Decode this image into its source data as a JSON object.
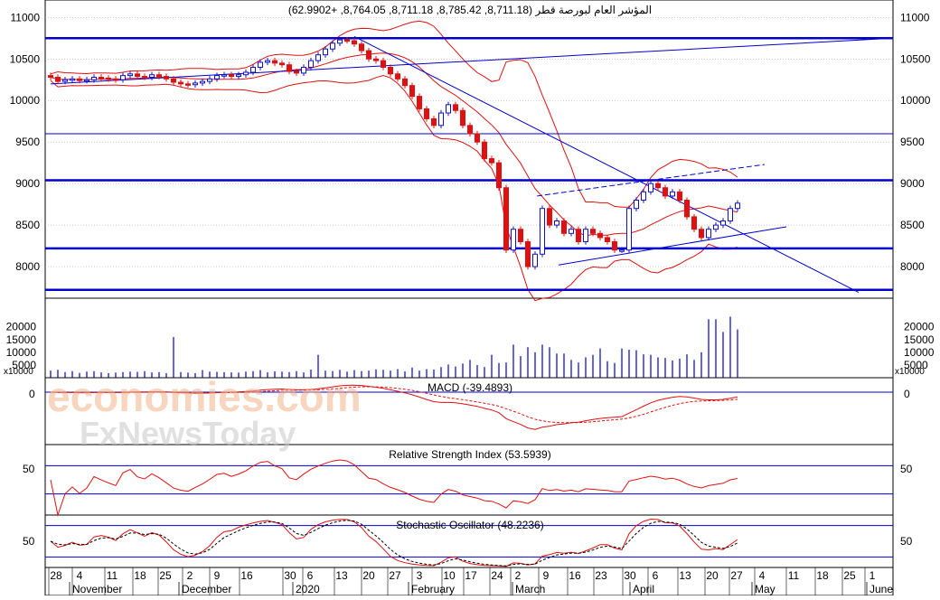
{
  "chart_data": {
    "type": "candlestick",
    "title": "المؤشر العام لبورصة قطر (8,711.18, 8,785.42, 8,711.18, 8,764.05, +62.9902)",
    "price_axis": {
      "ylim": [
        7620,
        11210
      ],
      "ticks": [
        8000,
        8500,
        9000,
        9500,
        10000,
        10500,
        11000
      ]
    },
    "x_axis": {
      "day_ticks": [
        "28",
        "4",
        "11",
        "18",
        "25",
        "2",
        "9",
        "16",
        "30",
        "6",
        "13",
        "20",
        "27",
        "3",
        "10",
        "17",
        "24",
        "2",
        "9",
        "16",
        "23",
        "30",
        "6",
        "13",
        "20",
        "27",
        "4",
        "11",
        "18",
        "25",
        "1"
      ],
      "months": [
        "November",
        "December",
        "2020",
        "February",
        "March",
        "April",
        "May",
        "June"
      ]
    },
    "close_series": [
      10280,
      10230,
      10250,
      10260,
      10240,
      10250,
      10280,
      10270,
      10260,
      10250,
      10300,
      10320,
      10290,
      10280,
      10310,
      10290,
      10260,
      10220,
      10200,
      10190,
      10210,
      10230,
      10260,
      10300,
      10310,
      10290,
      10310,
      10340,
      10400,
      10460,
      10480,
      10450,
      10430,
      10350,
      10330,
      10400,
      10480,
      10550,
      10620,
      10690,
      10730,
      10720,
      10680,
      10600,
      10500,
      10480,
      10400,
      10320,
      10260,
      10180,
      10050,
      9900,
      9780,
      9700,
      9850,
      9950,
      9880,
      9700,
      9600,
      9500,
      9300,
      9250,
      8950,
      8200,
      8450,
      8300,
      8000,
      8150,
      8700,
      8500,
      8550,
      8400,
      8450,
      8300,
      8450,
      8400,
      8350,
      8300,
      8200,
      8200,
      8700,
      8800,
      8900,
      9000,
      8950,
      8850,
      8900,
      8800,
      8600,
      8450,
      8350,
      8450,
      8500,
      8550,
      8700,
      8764
    ],
    "horizontal_levels": [
      10750,
      9600,
      9040,
      8220,
      7720
    ],
    "volume": {
      "axis_label": "x10000",
      "ticks": [
        5000,
        10000,
        15000,
        20000
      ],
      "values": [
        2800,
        3100,
        2200,
        2600,
        1900,
        2400,
        2600,
        2100,
        1800,
        2000,
        2200,
        2400,
        2300,
        2600,
        2100,
        2200,
        1800,
        16000,
        2200,
        2000,
        1800,
        3000,
        2400,
        2300,
        2200,
        2100,
        2000,
        2400,
        2600,
        3000,
        2100,
        2500,
        2400,
        2200,
        2600,
        2100,
        3200,
        9000,
        2800,
        2600,
        3100,
        2400,
        3000,
        2600,
        2800,
        3300,
        3100,
        2800,
        3400,
        2500,
        4000,
        2800,
        3400,
        3200,
        4200,
        5200,
        4400,
        5600,
        7000,
        5000,
        4200,
        9000,
        5800,
        6000,
        13000,
        8500,
        12000,
        10000,
        13000,
        12000,
        9500,
        9500,
        7000,
        6000,
        8000,
        9000,
        11500,
        6500,
        5800,
        11500,
        11000,
        10800,
        9200,
        9000,
        8000,
        7800,
        6800,
        7500,
        9200,
        7000,
        10000,
        23000,
        23000,
        18000,
        24000,
        19000
      ]
    },
    "macd": {
      "label": "MACD (-39.4893)",
      "value": -39.4893,
      "zero_label": "0"
    },
    "rsi": {
      "label": "Relative Strength Index (53.5939)",
      "value": 53.5939,
      "level_label": "50"
    },
    "stochastic": {
      "label": "Stochastic Oscillator (48.2236)",
      "value": 48.2236,
      "level_label": "50"
    }
  },
  "watermark": {
    "line1": "economies.com",
    "line2": "FxNewsToday"
  },
  "colors": {
    "up": "#1010d0",
    "down": "#e01010",
    "band": "#e01010",
    "level": "#0000cc",
    "grid": "#999999",
    "signal": "#e01010"
  }
}
